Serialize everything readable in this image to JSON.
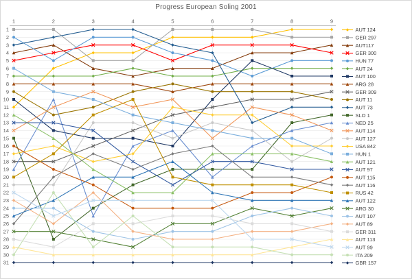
{
  "title": "Progress European Soling 2001",
  "chart_data": {
    "type": "line",
    "title": "Progress European Soling 2001",
    "x_ticks": [
      "1",
      "2",
      "3",
      "4",
      "5",
      "6",
      "7",
      "8",
      "9"
    ],
    "y_ticks": [
      "1",
      "2",
      "3",
      "4",
      "5",
      "6",
      "7",
      "8",
      "9",
      "10",
      "11",
      "12",
      "13",
      "14",
      "15",
      "16",
      "17",
      "18",
      "19",
      "20",
      "21",
      "22",
      "23",
      "24",
      "25",
      "26",
      "27",
      "28",
      "29",
      "30",
      "31"
    ],
    "x_axis_range": [
      1,
      9
    ],
    "y_axis_range": [
      1,
      31
    ],
    "y_axis_inverted": true,
    "grid": true,
    "legend_position": "right",
    "axis_color": "#a6a6a6",
    "grid_color": "#e8e8e8",
    "label_color": "#595959",
    "series": [
      {
        "name": "AUT 124",
        "color": "#FFC000",
        "values": [
          11,
          6,
          4,
          4,
          2,
          2,
          2,
          1,
          1
        ]
      },
      {
        "name": "GER 297",
        "color": "#A5A5A5",
        "values": [
          1,
          1,
          5,
          5,
          1,
          1,
          1,
          2,
          2
        ]
      },
      {
        "name": "AUT117",
        "color": "#843C0C",
        "values": [
          4,
          3,
          6,
          7,
          6,
          6,
          4,
          4,
          3
        ]
      },
      {
        "name": "GER 300",
        "color": "#FF0000",
        "values": [
          5,
          4,
          3,
          3,
          5,
          3,
          3,
          3,
          4
        ]
      },
      {
        "name": "HUN 77",
        "color": "#5B9BD5",
        "values": [
          2,
          5,
          2,
          2,
          4,
          5,
          7,
          5,
          5
        ]
      },
      {
        "name": "AUT 24",
        "color": "#70AD47",
        "values": [
          7,
          7,
          7,
          6,
          7,
          7,
          6,
          6,
          6
        ]
      },
      {
        "name": "AUT 100",
        "color": "#1F3864",
        "values": [
          10,
          14,
          15,
          15,
          16,
          10,
          5,
          7,
          7
        ]
      },
      {
        "name": "ARG 28",
        "color": "#9E480E",
        "values": [
          8,
          8,
          8,
          8,
          9,
          8,
          8,
          8,
          8
        ]
      },
      {
        "name": "GER 309",
        "color": "#636363",
        "values": [
          18,
          18,
          16,
          14,
          12,
          11,
          10,
          10,
          9
        ]
      },
      {
        "name": "AUT 11",
        "color": "#997300",
        "values": [
          9,
          12,
          11,
          9,
          8,
          9,
          9,
          9,
          10
        ]
      },
      {
        "name": "AUT 73",
        "color": "#255E91",
        "values": [
          3,
          2,
          1,
          1,
          3,
          4,
          13,
          11,
          11
        ]
      },
      {
        "name": "SLO 1",
        "color": "#43682B",
        "values": [
          15,
          28,
          24,
          21,
          19,
          19,
          19,
          13,
          12
        ]
      },
      {
        "name": "NED 25",
        "color": "#698ED0",
        "values": [
          19,
          10,
          25,
          16,
          14,
          20,
          16,
          14,
          13
        ]
      },
      {
        "name": "AUT 114",
        "color": "#F1975A",
        "values": [
          14,
          11,
          9,
          11,
          10,
          15,
          11,
          12,
          14
        ]
      },
      {
        "name": "AUT 127",
        "color": "#C9C9C9",
        "values": [
          21,
          21,
          13,
          13,
          15,
          13,
          14,
          18,
          15
        ]
      },
      {
        "name": "USA 842",
        "color": "#FFCD33",
        "values": [
          17,
          16,
          18,
          17,
          11,
          12,
          12,
          16,
          16
        ]
      },
      {
        "name": "HUN 1",
        "color": "#7CAFDD",
        "values": [
          6,
          9,
          10,
          12,
          13,
          14,
          15,
          15,
          17
        ]
      },
      {
        "name": "AUT 121",
        "color": "#8CC168",
        "values": [
          12,
          15,
          19,
          22,
          22,
          17,
          17,
          17,
          18
        ]
      },
      {
        "name": "AUT 97",
        "color": "#335AA1",
        "values": [
          13,
          13,
          14,
          18,
          21,
          18,
          18,
          19,
          19
        ]
      },
      {
        "name": "AUT 115",
        "color": "#C55A11",
        "values": [
          16,
          19,
          21,
          24,
          24,
          24,
          22,
          22,
          20
        ]
      },
      {
        "name": "AUT 116",
        "color": "#7B7B7B",
        "values": [
          26,
          20,
          17,
          19,
          17,
          16,
          20,
          20,
          21
        ]
      },
      {
        "name": "RUS 42",
        "color": "#BF8F00",
        "values": [
          20,
          17,
          12,
          10,
          20,
          21,
          21,
          21,
          22
        ]
      },
      {
        "name": "AUT 122",
        "color": "#2E75B6",
        "values": [
          25,
          23,
          20,
          20,
          18,
          22,
          23,
          23,
          23
        ]
      },
      {
        "name": "ARG 30",
        "color": "#538135",
        "values": [
          27,
          27,
          28,
          29,
          26,
          26,
          24,
          25,
          24
        ]
      },
      {
        "name": "AUT 107",
        "color": "#9DC3E6",
        "values": [
          24,
          24,
          27,
          28,
          27,
          27,
          25,
          24,
          25
        ]
      },
      {
        "name": "AUT 89",
        "color": "#F4B183",
        "values": [
          23,
          26,
          22,
          27,
          28,
          28,
          27,
          27,
          26
        ]
      },
      {
        "name": "GER 311",
        "color": "#DBDBDB",
        "values": [
          28,
          29,
          26,
          26,
          25,
          25,
          26,
          26,
          27
        ]
      },
      {
        "name": "AUT 113",
        "color": "#FFE699",
        "values": [
          29,
          30,
          30,
          30,
          30,
          30,
          30,
          29,
          28
        ]
      },
      {
        "name": "AUT 99",
        "color": "#BDD7EE",
        "values": [
          22,
          25,
          23,
          23,
          23,
          23,
          28,
          28,
          29
        ]
      },
      {
        "name": "ITA 209",
        "color": "#C5E0B4",
        "values": [
          30,
          22,
          29,
          25,
          29,
          29,
          29,
          30,
          30
        ]
      },
      {
        "name": "GBR 157",
        "color": "#203864",
        "values": [
          31,
          31,
          31,
          31,
          31,
          31,
          31,
          31,
          31
        ]
      }
    ]
  }
}
